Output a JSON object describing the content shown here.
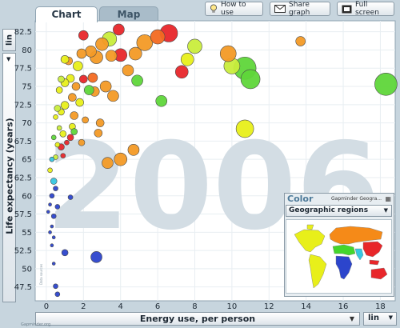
{
  "tabs": {
    "chart": "Chart",
    "map": "Map"
  },
  "toolbar": {
    "how_to_use": "How to use",
    "share_graph": "Share graph",
    "full_screen": "Full screen"
  },
  "y_axis": {
    "scale_label": "lin",
    "title": "Life expectancy (years)"
  },
  "x_axis": {
    "scale_label": "lin",
    "title": "Energy use, per person"
  },
  "year": "2006",
  "color_panel": {
    "title": "Color",
    "subtitle": "Gapminder Geogra...",
    "selected": "Geographic regions"
  },
  "credit_left": "Gapminder.org",
  "credit_y": "Data sources",
  "region_colors": {
    "americas": "#e8ef1a",
    "europe_central_asia": "#f58a18",
    "sub_saharan_africa": "#2c45cc",
    "middle_east_north_africa": "#44d62c",
    "south_asia": "#36c6e0",
    "east_asia_pacific": "#e8262a"
  },
  "chart_data": {
    "type": "scatter",
    "title": "2006",
    "xlabel": "Energy use, per person",
    "ylabel": "Life expectancy (years)",
    "xlim": [
      -0.6,
      18.8
    ],
    "ylim": [
      45.6,
      84.0
    ],
    "x_ticks": [
      0,
      2,
      4,
      6,
      8,
      10,
      12,
      14,
      16,
      18
    ],
    "y_ticks": [
      47.5,
      50,
      52.5,
      55,
      57.5,
      60,
      62.5,
      65,
      67.5,
      70,
      72.5,
      75,
      77.5,
      80,
      82.5
    ],
    "grid": true,
    "points": [
      {
        "x": 18.3,
        "y": 75.3,
        "r": 14,
        "c": "#5fd63a"
      },
      {
        "x": 13.7,
        "y": 81.2,
        "r": 6,
        "c": "#f39a26"
      },
      {
        "x": 11.0,
        "y": 76.0,
        "r": 12,
        "c": "#5fd63a"
      },
      {
        "x": 10.7,
        "y": 77.5,
        "r": 14,
        "c": "#5fd63a"
      },
      {
        "x": 10.0,
        "y": 77.8,
        "r": 10,
        "c": "#c9ed3c"
      },
      {
        "x": 10.7,
        "y": 69.2,
        "r": 11,
        "c": "#e8ef1a"
      },
      {
        "x": 9.8,
        "y": 79.5,
        "r": 10,
        "c": "#f39a26"
      },
      {
        "x": 8.0,
        "y": 80.5,
        "r": 9,
        "c": "#c9ed3c"
      },
      {
        "x": 7.6,
        "y": 78.7,
        "r": 8,
        "c": "#e8ef1a"
      },
      {
        "x": 7.3,
        "y": 77.0,
        "r": 8,
        "c": "#e8262a"
      },
      {
        "x": 6.6,
        "y": 82.3,
        "r": 11,
        "c": "#e8262a"
      },
      {
        "x": 6.0,
        "y": 81.8,
        "r": 9,
        "c": "#f36a21"
      },
      {
        "x": 5.3,
        "y": 81.0,
        "r": 10,
        "c": "#f39a26"
      },
      {
        "x": 4.8,
        "y": 79.5,
        "r": 8,
        "c": "#f39a26"
      },
      {
        "x": 4.9,
        "y": 75.8,
        "r": 7,
        "c": "#5fd63a"
      },
      {
        "x": 6.2,
        "y": 73.0,
        "r": 7,
        "c": "#5fd63a"
      },
      {
        "x": 4.4,
        "y": 77.2,
        "r": 7,
        "c": "#f39a26"
      },
      {
        "x": 3.9,
        "y": 82.8,
        "r": 7,
        "c": "#e8262a"
      },
      {
        "x": 4.0,
        "y": 79.3,
        "r": 8,
        "c": "#e8262a"
      },
      {
        "x": 3.5,
        "y": 79.2,
        "r": 7,
        "c": "#f39a26"
      },
      {
        "x": 3.4,
        "y": 81.5,
        "r": 9,
        "c": "#c9ed3c"
      },
      {
        "x": 3.0,
        "y": 80.8,
        "r": 8,
        "c": "#f39a26"
      },
      {
        "x": 2.7,
        "y": 79.0,
        "r": 8,
        "c": "#f39a26"
      },
      {
        "x": 2.4,
        "y": 79.8,
        "r": 7,
        "c": "#f39a26"
      },
      {
        "x": 2.0,
        "y": 82.0,
        "r": 6,
        "c": "#e8262a"
      },
      {
        "x": 1.9,
        "y": 79.5,
        "r": 6,
        "c": "#f39a26"
      },
      {
        "x": 1.7,
        "y": 77.8,
        "r": 6,
        "c": "#e8ef1a"
      },
      {
        "x": 1.2,
        "y": 78.5,
        "r": 5,
        "c": "#f39a26"
      },
      {
        "x": 1.0,
        "y": 78.7,
        "r": 5,
        "c": "#e8ef1a"
      },
      {
        "x": 3.6,
        "y": 73.7,
        "r": 7,
        "c": "#f39a26"
      },
      {
        "x": 3.2,
        "y": 75.0,
        "r": 7,
        "c": "#f39a26"
      },
      {
        "x": 2.6,
        "y": 74.3,
        "r": 6,
        "c": "#f39a26"
      },
      {
        "x": 2.3,
        "y": 74.5,
        "r": 6,
        "c": "#5fd63a"
      },
      {
        "x": 2.5,
        "y": 76.2,
        "r": 6,
        "c": "#f36a21"
      },
      {
        "x": 2.0,
        "y": 76.0,
        "r": 5,
        "c": "#e8262a"
      },
      {
        "x": 1.6,
        "y": 75.0,
        "r": 5,
        "c": "#f39a26"
      },
      {
        "x": 1.3,
        "y": 76.1,
        "r": 5,
        "c": "#e8ef1a"
      },
      {
        "x": 1.0,
        "y": 75.5,
        "r": 5,
        "c": "#e8ef1a"
      },
      {
        "x": 0.8,
        "y": 76.0,
        "r": 4,
        "c": "#c9ed3c"
      },
      {
        "x": 0.7,
        "y": 74.5,
        "r": 4,
        "c": "#e8ef1a"
      },
      {
        "x": 1.4,
        "y": 73.5,
        "r": 5,
        "c": "#f39a26"
      },
      {
        "x": 1.0,
        "y": 72.4,
        "r": 5,
        "c": "#e8ef1a"
      },
      {
        "x": 0.8,
        "y": 71.5,
        "r": 4,
        "c": "#e8ef1a"
      },
      {
        "x": 0.6,
        "y": 72.0,
        "r": 4,
        "c": "#c9ed3c"
      },
      {
        "x": 0.5,
        "y": 70.8,
        "r": 3,
        "c": "#e8ef1a"
      },
      {
        "x": 1.5,
        "y": 71.0,
        "r": 5,
        "c": "#f39a26"
      },
      {
        "x": 1.8,
        "y": 72.8,
        "r": 5,
        "c": "#e8ef1a"
      },
      {
        "x": 2.1,
        "y": 70.4,
        "r": 4,
        "c": "#f39a26"
      },
      {
        "x": 2.9,
        "y": 70.0,
        "r": 5,
        "c": "#f39a26"
      },
      {
        "x": 2.8,
        "y": 68.6,
        "r": 5,
        "c": "#f39a26"
      },
      {
        "x": 1.4,
        "y": 69.5,
        "r": 4,
        "c": "#e8ef1a"
      },
      {
        "x": 1.5,
        "y": 68.8,
        "r": 4,
        "c": "#5fd63a"
      },
      {
        "x": 1.3,
        "y": 68.0,
        "r": 4,
        "c": "#e8262a"
      },
      {
        "x": 0.9,
        "y": 68.5,
        "r": 4,
        "c": "#e8ef1a"
      },
      {
        "x": 0.7,
        "y": 69.3,
        "r": 3,
        "c": "#c9ed3c"
      },
      {
        "x": 0.4,
        "y": 68.0,
        "r": 3,
        "c": "#5fd63a"
      },
      {
        "x": 0.8,
        "y": 66.7,
        "r": 4,
        "c": "#e8262a"
      },
      {
        "x": 0.6,
        "y": 67.0,
        "r": 3,
        "c": "#e8ef1a"
      },
      {
        "x": 1.1,
        "y": 67.3,
        "r": 3,
        "c": "#e8262a"
      },
      {
        "x": 0.9,
        "y": 65.5,
        "r": 3,
        "c": "#e8262a"
      },
      {
        "x": 0.5,
        "y": 65.3,
        "r": 3,
        "c": "#c9ed3c"
      },
      {
        "x": 0.3,
        "y": 65.0,
        "r": 3,
        "c": "#36c6e0"
      },
      {
        "x": 0.2,
        "y": 63.5,
        "r": 3,
        "c": "#e8ef1a"
      },
      {
        "x": 0.4,
        "y": 62.0,
        "r": 4,
        "c": "#36c6e0"
      },
      {
        "x": 0.5,
        "y": 61.0,
        "r": 3,
        "c": "#2c45cc"
      },
      {
        "x": 0.3,
        "y": 60.0,
        "r": 3,
        "c": "#2c45cc"
      },
      {
        "x": 1.3,
        "y": 59.8,
        "r": 3,
        "c": "#2c45cc"
      },
      {
        "x": 0.6,
        "y": 58.5,
        "r": 3,
        "c": "#2c45cc"
      },
      {
        "x": 0.2,
        "y": 58.8,
        "r": 2,
        "c": "#2c45cc"
      },
      {
        "x": 0.4,
        "y": 57.2,
        "r": 3,
        "c": "#2c45cc"
      },
      {
        "x": 0.1,
        "y": 57.8,
        "r": 2,
        "c": "#2c45cc"
      },
      {
        "x": 0.3,
        "y": 55.8,
        "r": 2,
        "c": "#2c45cc"
      },
      {
        "x": 0.2,
        "y": 55.0,
        "r": 2,
        "c": "#2c45cc"
      },
      {
        "x": 0.4,
        "y": 54.3,
        "r": 2,
        "c": "#2c45cc"
      },
      {
        "x": 0.3,
        "y": 53.2,
        "r": 2,
        "c": "#2c45cc"
      },
      {
        "x": 1.0,
        "y": 52.2,
        "r": 4,
        "c": "#2c45cc"
      },
      {
        "x": 2.7,
        "y": 51.6,
        "r": 7,
        "c": "#2c45cc"
      },
      {
        "x": 0.4,
        "y": 50.7,
        "r": 2,
        "c": "#2c45cc"
      },
      {
        "x": 0.5,
        "y": 47.6,
        "r": 3,
        "c": "#2c45cc"
      },
      {
        "x": 0.6,
        "y": 46.5,
        "r": 3,
        "c": "#2c45cc"
      },
      {
        "x": 4.0,
        "y": 65.0,
        "r": 8,
        "c": "#f39a26"
      },
      {
        "x": 3.3,
        "y": 64.5,
        "r": 7,
        "c": "#f39a26"
      },
      {
        "x": 4.7,
        "y": 66.3,
        "r": 7,
        "c": "#f39a26"
      },
      {
        "x": 1.9,
        "y": 67.3,
        "r": 4,
        "c": "#f39a26"
      }
    ]
  }
}
